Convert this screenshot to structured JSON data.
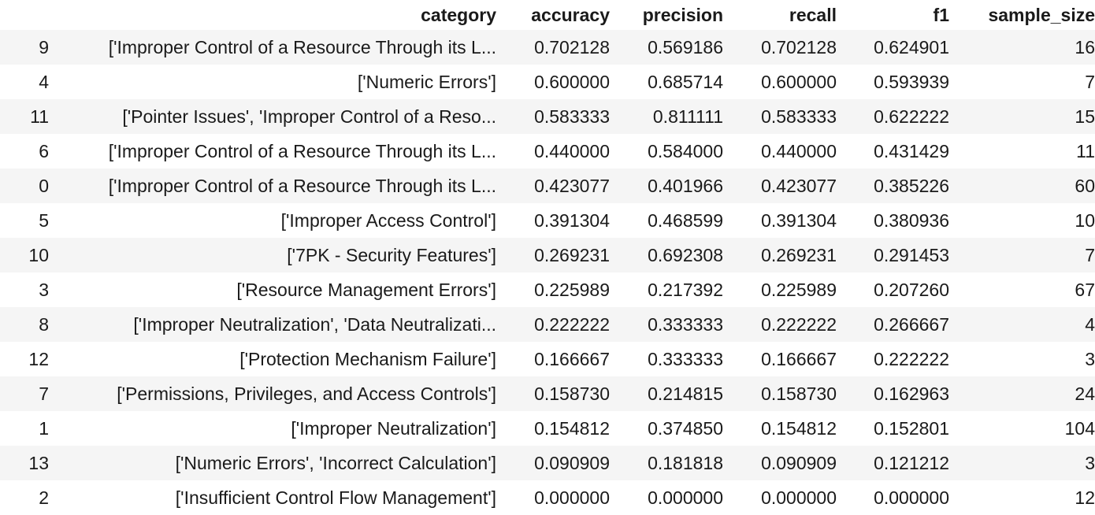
{
  "table": {
    "columns": [
      "category",
      "accuracy",
      "precision",
      "recall",
      "f1",
      "sample_size"
    ],
    "rows": [
      {
        "index": "9",
        "category": "['Improper Control of a Resource Through its L...",
        "accuracy": "0.702128",
        "precision": "0.569186",
        "recall": "0.702128",
        "f1": "0.624901",
        "sample_size": "16"
      },
      {
        "index": "4",
        "category": "['Numeric Errors']",
        "accuracy": "0.600000",
        "precision": "0.685714",
        "recall": "0.600000",
        "f1": "0.593939",
        "sample_size": "7"
      },
      {
        "index": "11",
        "category": "['Pointer Issues', 'Improper Control of a Reso...",
        "accuracy": "0.583333",
        "precision": "0.811111",
        "recall": "0.583333",
        "f1": "0.622222",
        "sample_size": "15"
      },
      {
        "index": "6",
        "category": "['Improper Control of a Resource Through its L...",
        "accuracy": "0.440000",
        "precision": "0.584000",
        "recall": "0.440000",
        "f1": "0.431429",
        "sample_size": "11"
      },
      {
        "index": "0",
        "category": "['Improper Control of a Resource Through its L...",
        "accuracy": "0.423077",
        "precision": "0.401966",
        "recall": "0.423077",
        "f1": "0.385226",
        "sample_size": "60"
      },
      {
        "index": "5",
        "category": "['Improper Access Control']",
        "accuracy": "0.391304",
        "precision": "0.468599",
        "recall": "0.391304",
        "f1": "0.380936",
        "sample_size": "10"
      },
      {
        "index": "10",
        "category": "['7PK - Security Features']",
        "accuracy": "0.269231",
        "precision": "0.692308",
        "recall": "0.269231",
        "f1": "0.291453",
        "sample_size": "7"
      },
      {
        "index": "3",
        "category": "['Resource Management Errors']",
        "accuracy": "0.225989",
        "precision": "0.217392",
        "recall": "0.225989",
        "f1": "0.207260",
        "sample_size": "67"
      },
      {
        "index": "8",
        "category": "['Improper Neutralization', 'Data Neutralizati...",
        "accuracy": "0.222222",
        "precision": "0.333333",
        "recall": "0.222222",
        "f1": "0.266667",
        "sample_size": "4"
      },
      {
        "index": "12",
        "category": "['Protection Mechanism Failure']",
        "accuracy": "0.166667",
        "precision": "0.333333",
        "recall": "0.166667",
        "f1": "0.222222",
        "sample_size": "3"
      },
      {
        "index": "7",
        "category": "['Permissions, Privileges, and Access Controls']",
        "accuracy": "0.158730",
        "precision": "0.214815",
        "recall": "0.158730",
        "f1": "0.162963",
        "sample_size": "24"
      },
      {
        "index": "1",
        "category": "['Improper Neutralization']",
        "accuracy": "0.154812",
        "precision": "0.374850",
        "recall": "0.154812",
        "f1": "0.152801",
        "sample_size": "104"
      },
      {
        "index": "13",
        "category": "['Numeric Errors', 'Incorrect Calculation']",
        "accuracy": "0.090909",
        "precision": "0.181818",
        "recall": "0.090909",
        "f1": "0.121212",
        "sample_size": "3"
      },
      {
        "index": "2",
        "category": "['Insufficient Control Flow Management']",
        "accuracy": "0.000000",
        "precision": "0.000000",
        "recall": "0.000000",
        "f1": "0.000000",
        "sample_size": "12"
      }
    ]
  }
}
